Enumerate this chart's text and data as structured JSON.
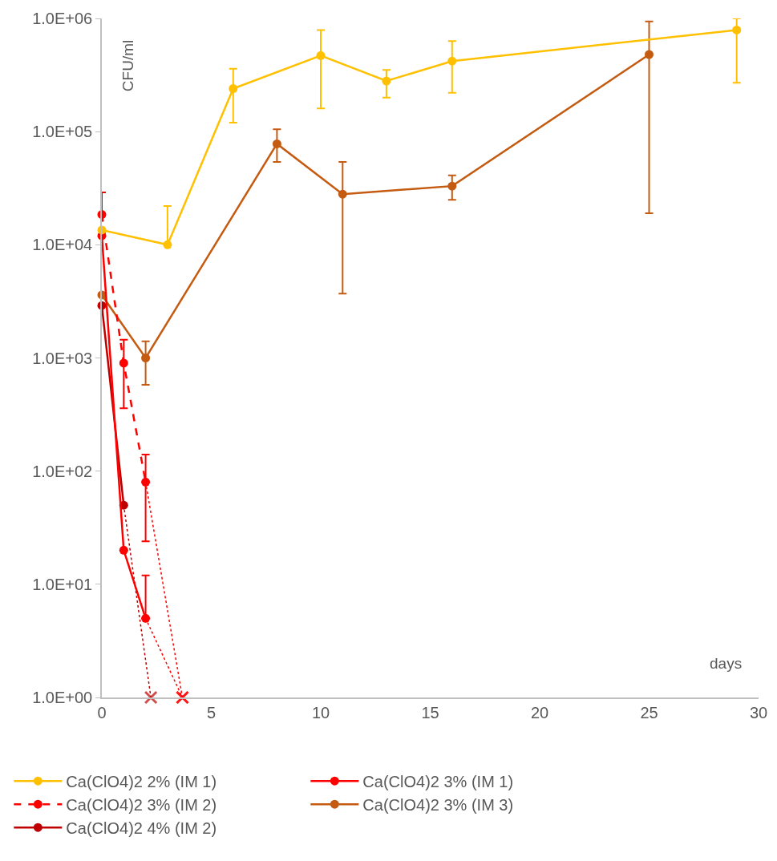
{
  "chart_data": {
    "type": "line",
    "xlabel": "days",
    "ylabel": "CFU/ml",
    "log": "y",
    "legend": "bottom",
    "marker": "circle",
    "line_style": "solid",
    "xlim": [
      0,
      30
    ],
    "xticks": [
      0,
      5,
      10,
      15,
      20,
      25,
      30
    ],
    "ylim": [
      1,
      1000000
    ],
    "yticks": [
      {
        "value": 1,
        "label": "1.0E+00"
      },
      {
        "value": 10,
        "label": "1.0E+01"
      },
      {
        "value": 100,
        "label": "1.0E+02"
      },
      {
        "value": 1000,
        "label": "1.0E+03"
      },
      {
        "value": 10000,
        "label": "1.0E+04"
      },
      {
        "value": 100000,
        "label": "1.0E+05"
      },
      {
        "value": 1000000,
        "label": "1.0E+06"
      }
    ],
    "series": [
      {
        "name": "Ca(ClO4)2 2% (IM 1)",
        "color": "#ffc000",
        "x": [
          0,
          3,
          6,
          10,
          13,
          16,
          29
        ],
        "values": [
          13500,
          10000,
          240000,
          470000,
          280000,
          420000,
          790000
        ],
        "errors": [
          null,
          [
            10000,
            22000
          ],
          [
            120000,
            360000
          ],
          [
            160000,
            790000
          ],
          [
            200000,
            350000
          ],
          [
            220000,
            630000
          ],
          [
            270000,
            1000000
          ]
        ]
      },
      {
        "name": "Ca(ClO4)2 3% (IM 1)",
        "color": "#ff0000",
        "x": [
          0,
          1,
          2
        ],
        "values": [
          12000,
          20,
          5
        ],
        "errors": [
          null,
          null,
          [
            5,
            12
          ]
        ]
      },
      {
        "name": "Ca(ClO4)2 3% (IM 2)",
        "color": "#ff0000",
        "line_style": "dashed",
        "x": [
          0,
          1,
          2
        ],
        "values": [
          18500,
          900,
          80
        ],
        "errors": [
          [
            18500,
            29000
          ],
          [
            360,
            1450
          ],
          [
            24,
            140
          ]
        ]
      },
      {
        "name": "Ca(ClO4)2 3% (IM 3)",
        "color": "#c55a11",
        "x": [
          0,
          2,
          8,
          11,
          16,
          25
        ],
        "values": [
          3600,
          1000,
          78000,
          28000,
          33000,
          480000
        ],
        "errors": [
          null,
          [
            580,
            1400
          ],
          [
            54000,
            105000
          ],
          [
            3700,
            54000
          ],
          [
            25000,
            41000
          ],
          [
            19000,
            940000
          ]
        ]
      },
      {
        "name": "Ca(ClO4)2 4% (IM 2)",
        "color": "#c00000",
        "x": [
          0,
          1
        ],
        "values": [
          2900,
          50
        ]
      },
      {
        "color": "#c00000",
        "line_style": "dotted",
        "marker": "cross",
        "x": [
          1,
          2.24
        ],
        "values": [
          50,
          1
        ]
      },
      {
        "color": "#ff0000",
        "line_style": "dotted",
        "marker": "cross",
        "x": [
          2,
          3.68
        ],
        "values": [
          80,
          1
        ]
      },
      {
        "color": "#ff0000",
        "line_style": "dotted",
        "marker": "cross",
        "x": [
          2,
          3.68
        ],
        "values": [
          5,
          1
        ]
      }
    ]
  }
}
